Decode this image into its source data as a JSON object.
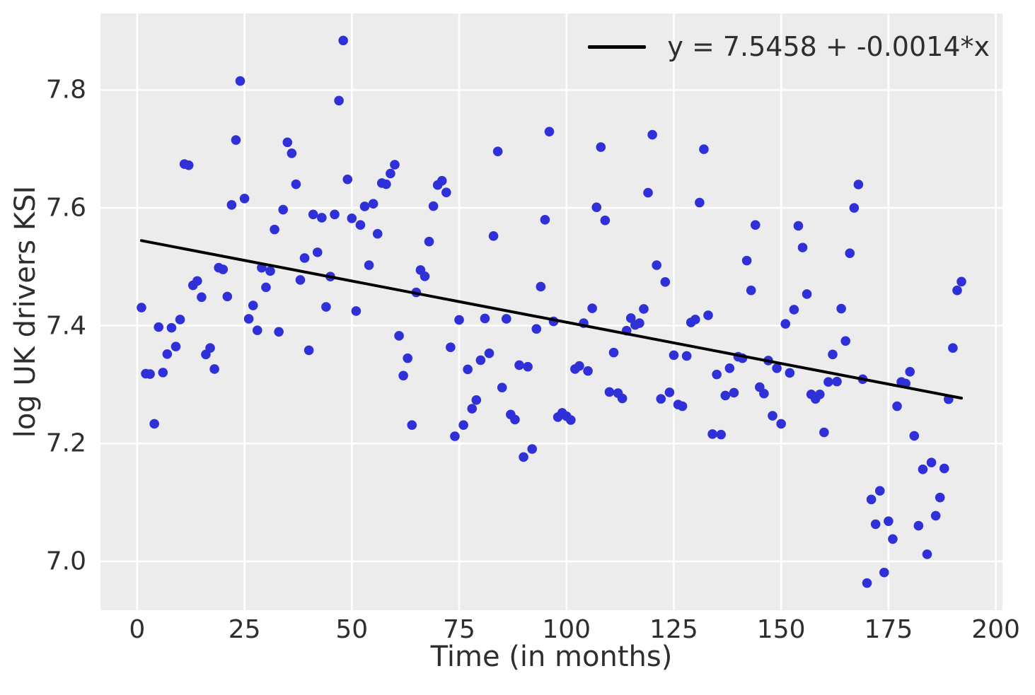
{
  "chart_data": {
    "type": "scatter",
    "title": "",
    "xlabel": "Time (in months)",
    "ylabel": "log UK drivers KSI",
    "xlim": [
      -8.55,
      201.55
    ],
    "ylim": [
      6.9172,
      7.9299
    ],
    "grid": true,
    "x_ticks": {
      "values": [
        0,
        25,
        50,
        75,
        100,
        125,
        150,
        175,
        200
      ],
      "labels": [
        "0",
        "25",
        "50",
        "75",
        "100",
        "125",
        "150",
        "175",
        "200"
      ]
    },
    "y_ticks": {
      "values": [
        7.0,
        7.2,
        7.4,
        7.6,
        7.8
      ],
      "labels": [
        "7.0",
        "7.2",
        "7.4",
        "7.6",
        "7.8"
      ]
    },
    "legend": {
      "position": "upper right",
      "label": "y = 7.5458 + -0.0014*x"
    },
    "fit_line": {
      "intercept": 7.5458,
      "slope": -0.0014,
      "x_range": [
        1,
        192
      ],
      "color": "#000000",
      "width": 4
    },
    "style": {
      "plot_bg": "#ececec",
      "grid_color": "#ffffff",
      "grid_width": 2.6,
      "text_color": "#2e2e2e",
      "marker_radius": 6.8
    },
    "series": [
      {
        "name": "log UK drivers KSI",
        "marker": "circle",
        "color": "#3030d9",
        "x": [
          1,
          2,
          3,
          4,
          5,
          6,
          7,
          8,
          9,
          10,
          11,
          12,
          13,
          14,
          15,
          16,
          17,
          18,
          19,
          20,
          21,
          22,
          23,
          24,
          25,
          26,
          27,
          28,
          29,
          30,
          31,
          32,
          33,
          34,
          35,
          36,
          37,
          38,
          39,
          40,
          41,
          42,
          43,
          44,
          45,
          46,
          47,
          48,
          49,
          50,
          51,
          52,
          53,
          54,
          55,
          56,
          57,
          58,
          59,
          60,
          61,
          62,
          63,
          64,
          65,
          66,
          67,
          68,
          69,
          70,
          71,
          72,
          73,
          74,
          75,
          76,
          77,
          78,
          79,
          80,
          81,
          82,
          83,
          84,
          85,
          86,
          87,
          88,
          89,
          90,
          91,
          92,
          93,
          94,
          95,
          96,
          97,
          98,
          99,
          100,
          101,
          102,
          103,
          104,
          105,
          106,
          107,
          108,
          109,
          110,
          111,
          112,
          113,
          114,
          115,
          116,
          117,
          118,
          119,
          120,
          121,
          122,
          123,
          124,
          125,
          126,
          127,
          128,
          129,
          130,
          131,
          132,
          133,
          134,
          135,
          136,
          137,
          138,
          139,
          140,
          141,
          142,
          143,
          144,
          145,
          146,
          147,
          148,
          149,
          150,
          151,
          152,
          153,
          154,
          155,
          156,
          157,
          158,
          159,
          160,
          161,
          162,
          163,
          164,
          165,
          166,
          167,
          168,
          169,
          170,
          171,
          172,
          173,
          174,
          175,
          176,
          177,
          178,
          179,
          180,
          181,
          182,
          183,
          184,
          185,
          186,
          187,
          188,
          189,
          190,
          191,
          192
        ],
        "y": [
          7.4307,
          7.3185,
          7.3179,
          7.2334,
          7.3976,
          7.3205,
          7.3518,
          7.3964,
          7.3646,
          7.4104,
          7.6742,
          7.6723,
          7.4685,
          7.4759,
          7.4484,
          7.3512,
          7.3621,
          7.3264,
          7.4983,
          7.4955,
          7.4495,
          7.6049,
          7.7151,
          7.8152,
          7.6158,
          7.4116,
          7.4343,
          7.3921,
          7.4983,
          7.4651,
          7.4927,
          7.5632,
          7.3896,
          7.5969,
          7.7111,
          7.6926,
          7.6401,
          7.4776,
          7.5148,
          7.3582,
          7.5888,
          7.5245,
          7.5832,
          7.4319,
          7.4833,
          7.5888,
          7.7819,
          7.8839,
          7.6483,
          7.5822,
          7.4248,
          7.5709,
          7.6024,
          7.5027,
          7.6069,
          7.5559,
          7.642,
          7.6401,
          7.6582,
          7.6732,
          7.3828,
          7.3152,
          7.3448,
          7.2313,
          7.4565,
          7.4944,
          7.4838,
          7.5427,
          7.6029,
          7.6387,
          7.6459,
          7.6261,
          7.3633,
          7.2123,
          7.4098,
          7.2313,
          7.3258,
          7.2591,
          7.2738,
          7.3414,
          7.4122,
          7.3531,
          7.5522,
          7.6957,
          7.295,
          7.4116,
          7.2492,
          7.2406,
          7.333,
          7.177,
          7.3304,
          7.1907,
          7.3945,
          7.4662,
          7.5797,
          7.7293,
          7.4073,
          7.2449,
          7.252,
          7.2463,
          7.2399,
          7.3264,
          7.3317,
          7.4043,
          7.3232,
          7.4295,
          7.6009,
          7.703,
          7.5787,
          7.2875,
          7.3544,
          7.2855,
          7.2765,
          7.3915,
          7.4128,
          7.4012,
          7.4043,
          7.4284,
          7.6256,
          7.724,
          7.5027,
          7.2758,
          7.4742,
          7.2868,
          7.3499,
          7.2661,
          7.2633,
          7.3486,
          7.4055,
          7.4104,
          7.6089,
          7.6994,
          7.4176,
          7.216,
          7.3172,
          7.2152,
          7.2814,
          7.3278,
          7.2862,
          7.3473,
          7.3448,
          7.5104,
          7.4599,
          7.5709,
          7.2957,
          7.2848,
          7.3408,
          7.2471,
          7.3278,
          7.2334,
          7.4031,
          7.3198,
          7.4272,
          7.5694,
          7.5326,
          7.4536,
          7.2834,
          7.2758,
          7.2834,
          7.2189,
          7.3045,
          7.3512,
          7.3052,
          7.4289,
          7.374,
          7.5229,
          7.5999,
          7.6396,
          7.3092,
          6.9632,
          7.105,
          7.0631,
          7.1197,
          6.9811,
          7.0682,
          7.0379,
          7.2633,
          7.3045,
          7.3018,
          7.3218,
          7.213,
          7.0605,
          7.1562,
          7.0121,
          7.1678,
          7.0775,
          7.1083,
          7.1577,
          7.2751,
          7.3621,
          7.4599,
          7.4748
        ]
      }
    ]
  }
}
